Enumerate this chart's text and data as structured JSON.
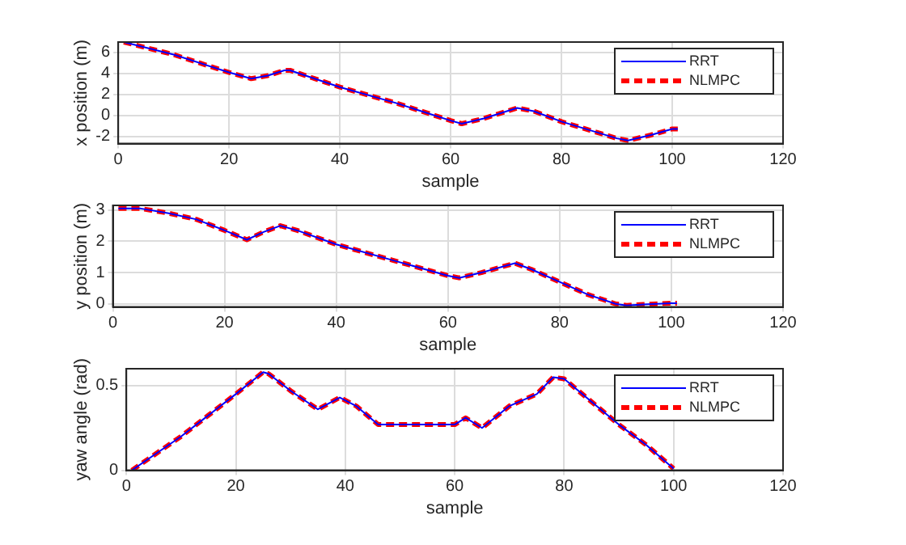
{
  "chart_data": [
    {
      "type": "line",
      "xlabel": "sample",
      "ylabel": "x position (m)",
      "xlim": [
        0,
        120
      ],
      "xticks": [
        0,
        20,
        40,
        60,
        80,
        100,
        120
      ],
      "ylim": [
        -2.7,
        7
      ],
      "yticks": [
        -2,
        0,
        2,
        4,
        6
      ],
      "grid": true,
      "legend": "top right",
      "marker": "none",
      "x": [
        1,
        10,
        20,
        24,
        27,
        30,
        31,
        40,
        50,
        60,
        62,
        66,
        72,
        75,
        80,
        90,
        92,
        96,
        100,
        101
      ],
      "series": [
        {
          "name": "RRT",
          "color": "#0000ff",
          "line_style": "solid",
          "values": [
            7,
            5.8,
            4.1,
            3.5,
            3.8,
            4.3,
            4.3,
            2.7,
            1.2,
            -0.5,
            -0.8,
            -0.3,
            0.7,
            0.4,
            -0.6,
            -2.2,
            -2.4,
            -1.9,
            -1.3,
            -1.3
          ]
        },
        {
          "name": "NLMPC",
          "color": "#ff0000",
          "line_style": "dashed",
          "values": [
            7,
            5.8,
            4.1,
            3.5,
            3.8,
            4.3,
            4.3,
            2.7,
            1.2,
            -0.5,
            -0.8,
            -0.3,
            0.7,
            0.4,
            -0.6,
            -2.2,
            -2.4,
            -1.9,
            -1.3,
            -1.3
          ]
        }
      ]
    },
    {
      "type": "line",
      "xlabel": "sample",
      "ylabel": "y position (m)",
      "xlim": [
        0,
        120
      ],
      "xticks": [
        0,
        20,
        40,
        60,
        80,
        100,
        120
      ],
      "ylim": [
        -0.1,
        3.15
      ],
      "yticks": [
        0,
        1,
        2,
        3
      ],
      "grid": true,
      "legend": "top right",
      "marker": "none",
      "x": [
        1,
        5,
        10,
        15,
        20,
        24,
        27,
        30,
        33,
        40,
        50,
        60,
        62,
        66,
        72,
        75,
        80,
        85,
        90,
        92,
        95,
        100,
        101
      ],
      "series": [
        {
          "name": "RRT",
          "color": "#0000ff",
          "line_style": "solid",
          "values": [
            3.05,
            3.05,
            2.9,
            2.7,
            2.35,
            2.05,
            2.3,
            2.5,
            2.35,
            1.9,
            1.4,
            0.9,
            0.83,
            1.0,
            1.3,
            1.1,
            0.7,
            0.3,
            0,
            -0.05,
            -0.02,
            0.02,
            0.02
          ]
        },
        {
          "name": "NLMPC",
          "color": "#ff0000",
          "line_style": "dashed",
          "values": [
            3.05,
            3.05,
            2.9,
            2.7,
            2.35,
            2.05,
            2.3,
            2.5,
            2.35,
            1.9,
            1.4,
            0.9,
            0.83,
            1.0,
            1.3,
            1.1,
            0.7,
            0.3,
            0,
            -0.05,
            -0.02,
            0.02,
            0.02
          ]
        }
      ]
    },
    {
      "type": "line",
      "xlabel": "sample",
      "ylabel": "yaw angle (rad)",
      "xlim": [
        0,
        120
      ],
      "xticks": [
        0,
        20,
        40,
        60,
        80,
        100,
        120
      ],
      "ylim": [
        0,
        0.6
      ],
      "yticks": [
        0,
        0.5
      ],
      "grid": true,
      "legend": "top right",
      "marker": "none",
      "x": [
        1,
        10,
        20,
        25,
        26,
        30,
        35,
        39,
        42,
        46,
        60,
        62,
        65,
        70,
        75,
        78,
        80,
        90,
        95,
        100
      ],
      "series": [
        {
          "name": "RRT",
          "color": "#0000ff",
          "line_style": "solid",
          "values": [
            0,
            0.2,
            0.45,
            0.58,
            0.57,
            0.47,
            0.36,
            0.43,
            0.38,
            0.27,
            0.27,
            0.31,
            0.25,
            0.38,
            0.45,
            0.55,
            0.54,
            0.27,
            0.15,
            0.01
          ]
        },
        {
          "name": "NLMPC",
          "color": "#ff0000",
          "line_style": "dashed",
          "values": [
            0,
            0.2,
            0.45,
            0.58,
            0.57,
            0.47,
            0.36,
            0.43,
            0.38,
            0.27,
            0.27,
            0.31,
            0.25,
            0.38,
            0.45,
            0.55,
            0.54,
            0.27,
            0.15,
            0.01
          ]
        }
      ]
    }
  ]
}
